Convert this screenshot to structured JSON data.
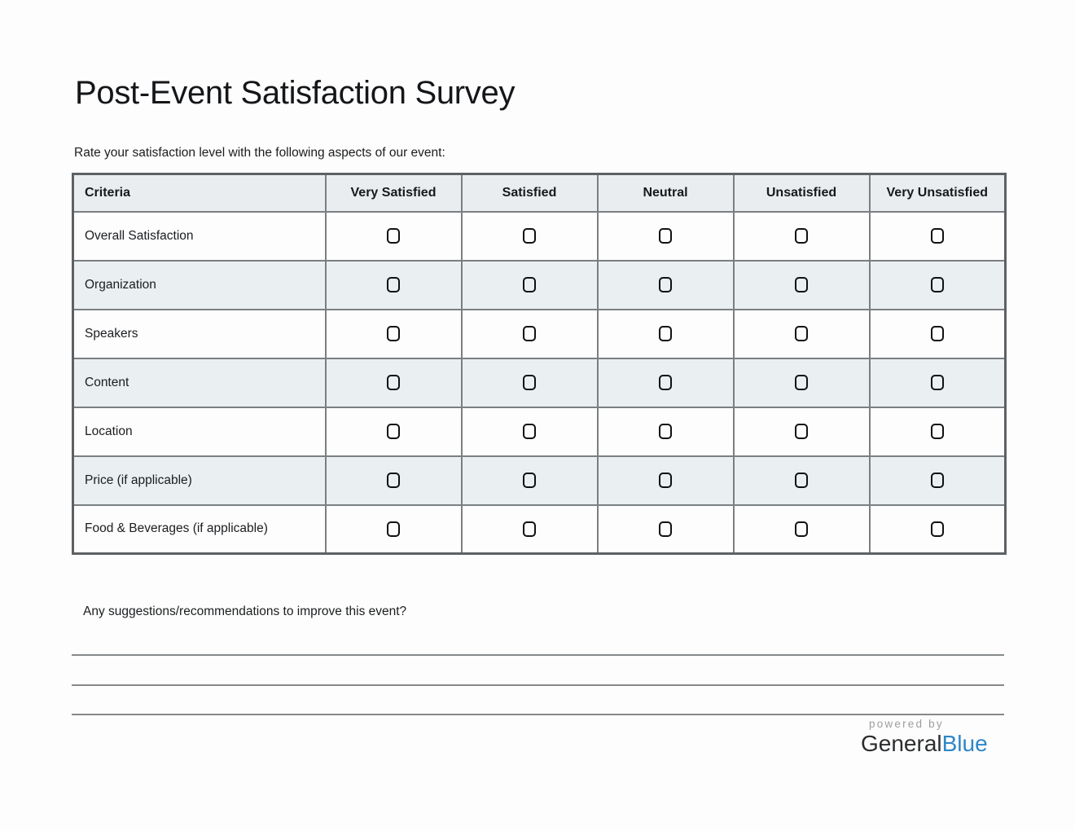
{
  "page": {
    "title": "Post-Event Satisfaction Survey",
    "instruction": "Rate your satisfaction level with the following aspects of our event:"
  },
  "table": {
    "columns": [
      "Criteria",
      "Very Satisfied",
      "Satisfied",
      "Neutral",
      "Unsatisfied",
      "Very Unsatisfied"
    ],
    "rows": [
      {
        "label": "Overall Satisfaction",
        "checked": [
          false,
          false,
          false,
          false,
          false
        ]
      },
      {
        "label": "Organization",
        "checked": [
          false,
          false,
          false,
          false,
          false
        ]
      },
      {
        "label": "Speakers",
        "checked": [
          false,
          false,
          false,
          false,
          false
        ]
      },
      {
        "label": "Content",
        "checked": [
          false,
          false,
          false,
          false,
          false
        ]
      },
      {
        "label": "Location",
        "checked": [
          false,
          false,
          false,
          false,
          false
        ]
      },
      {
        "label": "Price (if applicable)",
        "checked": [
          false,
          false,
          false,
          false,
          false
        ]
      },
      {
        "label": "Food & Beverages (if applicable)",
        "checked": [
          false,
          false,
          false,
          false,
          false
        ]
      }
    ]
  },
  "suggestions": {
    "prompt": "Any suggestions/recommendations to improve this event?",
    "line_count": 3
  },
  "footer": {
    "powered_by": "powered by",
    "brand": {
      "general": "General",
      "blue": "Blue"
    }
  },
  "colors": {
    "brand_blue": "#2d87c8",
    "table_stripe": "#eaeff1",
    "table_border": "#7b7f81",
    "line_gray": "#86898b"
  }
}
